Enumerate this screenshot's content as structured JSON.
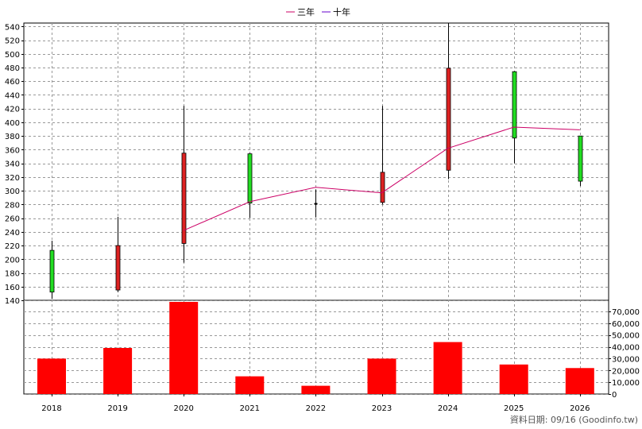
{
  "legend": [
    {
      "label": "三年",
      "color": "#cc0066"
    },
    {
      "label": "十年",
      "color": "#6600cc"
    }
  ],
  "source_label": "資料日期: 09/16 (Goodinfo.tw)",
  "colors": {
    "up_candle": "#22dd22",
    "down_candle": "#dd2222",
    "volume_bar": "#ff0000",
    "ma3_line": "#cc0066",
    "grid": "#999999"
  },
  "chart_data": [
    {
      "type": "candlestick",
      "x_type": "year",
      "categories": [
        "2018",
        "2019",
        "2020",
        "2021",
        "2022",
        "2023",
        "2024",
        "2025",
        "2026"
      ],
      "ylim": [
        140,
        545
      ],
      "y_ticks": [
        140,
        160,
        180,
        200,
        220,
        240,
        260,
        280,
        300,
        320,
        340,
        360,
        380,
        400,
        420,
        440,
        460,
        480,
        500,
        520,
        540
      ],
      "candles": [
        {
          "open": 152,
          "high": 227,
          "low": 142,
          "close": 213,
          "trend": "up"
        },
        {
          "open": 220,
          "high": 262,
          "low": 152,
          "close": 155,
          "trend": "down"
        },
        {
          "open": 355,
          "high": 424,
          "low": 195,
          "close": 223,
          "trend": "down"
        },
        {
          "open": 282,
          "high": 355,
          "low": 260,
          "close": 354,
          "trend": "up"
        },
        {
          "open": 281,
          "high": 302,
          "low": 261,
          "close": 280,
          "trend": "flat"
        },
        {
          "open": 327,
          "high": 424,
          "low": 280,
          "close": 283,
          "trend": "down"
        },
        {
          "open": 479,
          "high": 545,
          "low": 317,
          "close": 330,
          "trend": "down"
        },
        {
          "open": 377,
          "high": 475,
          "low": 340,
          "close": 474,
          "trend": "up"
        },
        {
          "open": 314,
          "high": 380,
          "low": 307,
          "close": 380,
          "trend": "up"
        }
      ],
      "series": [
        {
          "name": "三年",
          "values": [
            null,
            null,
            242,
            284,
            305,
            297,
            362,
            393,
            389
          ]
        }
      ]
    },
    {
      "type": "bar",
      "categories": [
        "2018",
        "2019",
        "2020",
        "2021",
        "2022",
        "2023",
        "2024",
        "2025",
        "2026"
      ],
      "values": [
        30000,
        39000,
        78000,
        15000,
        7000,
        30000,
        44000,
        25000,
        22000
      ],
      "ylim": [
        0,
        78000
      ],
      "y_ticks": [
        0,
        10000,
        20000,
        30000,
        40000,
        50000,
        60000,
        70000
      ],
      "y_tick_labels": [
        "0",
        "10,000",
        "20,000",
        "30,000",
        "40,000",
        "50,000",
        "60,000",
        "70,000"
      ]
    }
  ]
}
